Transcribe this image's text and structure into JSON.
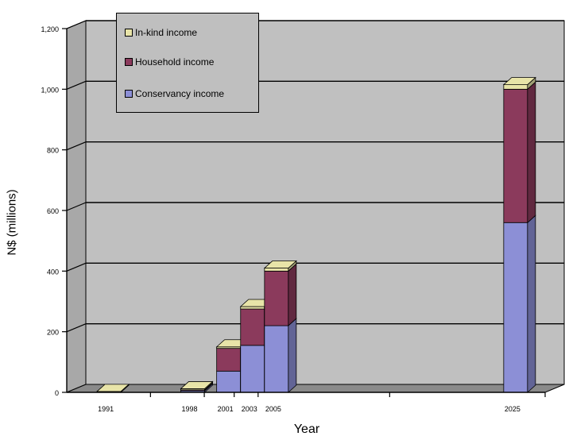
{
  "chart_data": {
    "type": "bar",
    "stacked": true,
    "three_d": true,
    "ylabel": "N$ (millions)",
    "xlabel": "Year",
    "ylim": [
      0,
      1200
    ],
    "yticks": [
      "0",
      "200",
      "400",
      "600",
      "800",
      "1,000",
      "1,200"
    ],
    "ytick_values": [
      0,
      200,
      400,
      600,
      800,
      1000,
      1200
    ],
    "categories": [
      "1991",
      "1998",
      "2001",
      "2003",
      "2005",
      "2025"
    ],
    "x_years": [
      1991,
      1998,
      2001,
      2003,
      2005,
      2025
    ],
    "series": [
      {
        "name": "Conservancy income",
        "color": "#8c8fd6",
        "values": [
          0,
          5,
          70,
          155,
          220,
          560
        ]
      },
      {
        "name": "Household income",
        "color": "#8b3a5c",
        "values": [
          0,
          3,
          75,
          120,
          180,
          440
        ]
      },
      {
        "name": "In-kind income",
        "color": "#e8e4a8",
        "values": [
          3,
          4,
          5,
          8,
          10,
          15
        ]
      }
    ],
    "legend": [
      {
        "label": "In-kind income",
        "color": "#e8e4a8"
      },
      {
        "label": "Household income",
        "color": "#8b3a5c"
      },
      {
        "label": "Conservancy income",
        "color": "#8c8fd6"
      }
    ],
    "grid": true,
    "legend_position": "top-left"
  }
}
